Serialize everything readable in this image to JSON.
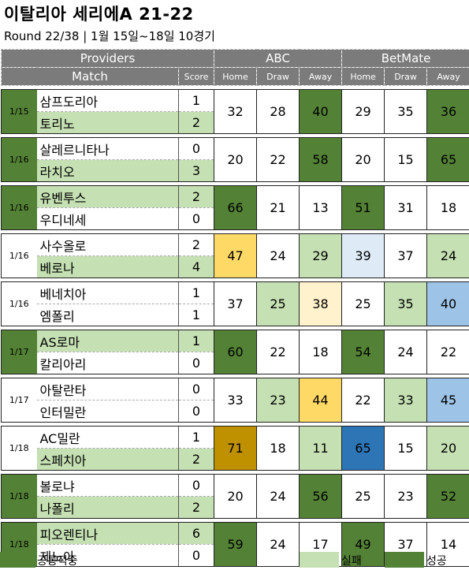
{
  "title": "이탈리아 세리에A 21-22",
  "subtitle": "Round 22/38 | 1월 15일~18일 10경기",
  "header": {
    "providers": "Providers",
    "match": "Match",
    "score": "Score",
    "abc": "ABC",
    "betmate": "BetMate",
    "home": "Home",
    "draw": "Draw",
    "away": "Away"
  },
  "colors": {
    "success": "#538135",
    "common": "#548235",
    "fail": "#c5e0b3",
    "header": "#7b7b7b",
    "yellow": "#ffd966",
    "light_yellow": "#fff2cc",
    "dark_gold": "#bf9000",
    "light_blue": "#deebf7",
    "blue": "#9dc3e6",
    "dark_blue": "#2e75b6"
  },
  "chart_data": {
    "type": "table",
    "matches": [
      {
        "date": "1/15",
        "home": "삼프도리아",
        "away": "토리노",
        "home_score": "1",
        "away_score": "2",
        "abc": [
          "32",
          "28",
          "40"
        ],
        "betmate": [
          "29",
          "35",
          "36"
        ]
      },
      {
        "date": "1/16",
        "home": "살레르니타나",
        "away": "라치오",
        "home_score": "0",
        "away_score": "3",
        "abc": [
          "20",
          "22",
          "58"
        ],
        "betmate": [
          "20",
          "15",
          "65"
        ]
      },
      {
        "date": "1/16",
        "home": "유벤투스",
        "away": "우디네세",
        "home_score": "2",
        "away_score": "0",
        "abc": [
          "66",
          "21",
          "13"
        ],
        "betmate": [
          "51",
          "31",
          "18"
        ]
      },
      {
        "date": "1/16",
        "home": "사수올로",
        "away": "베로나",
        "home_score": "2",
        "away_score": "4",
        "abc": [
          "47",
          "24",
          "29"
        ],
        "betmate": [
          "39",
          "37",
          "24"
        ]
      },
      {
        "date": "1/16",
        "home": "베네치아",
        "away": "엠폴리",
        "home_score": "1",
        "away_score": "1",
        "abc": [
          "37",
          "25",
          "38"
        ],
        "betmate": [
          "25",
          "35",
          "40"
        ]
      },
      {
        "date": "1/17",
        "home": "AS로마",
        "away": "칼리아리",
        "home_score": "1",
        "away_score": "0",
        "abc": [
          "60",
          "22",
          "18"
        ],
        "betmate": [
          "54",
          "24",
          "22"
        ]
      },
      {
        "date": "1/17",
        "home": "아탈란타",
        "away": "인터밀란",
        "home_score": "0",
        "away_score": "0",
        "abc": [
          "33",
          "23",
          "44"
        ],
        "betmate": [
          "22",
          "33",
          "45"
        ]
      },
      {
        "date": "1/18",
        "home": "AC밀란",
        "away": "스페치아",
        "home_score": "1",
        "away_score": "2",
        "abc": [
          "71",
          "18",
          "11"
        ],
        "betmate": [
          "65",
          "15",
          "20"
        ]
      },
      {
        "date": "1/18",
        "home": "볼로냐",
        "away": "나폴리",
        "home_score": "0",
        "away_score": "2",
        "abc": [
          "20",
          "24",
          "56"
        ],
        "betmate": [
          "25",
          "23",
          "52"
        ]
      },
      {
        "date": "1/18",
        "home": "피오렌티나",
        "away": "제노아",
        "home_score": "6",
        "away_score": "0",
        "abc": [
          "59",
          "24",
          "17"
        ],
        "betmate": [
          "49",
          "37",
          "14"
        ]
      }
    ]
  },
  "legend": {
    "common": "공통적중",
    "fail": "실패",
    "success": "성공"
  }
}
